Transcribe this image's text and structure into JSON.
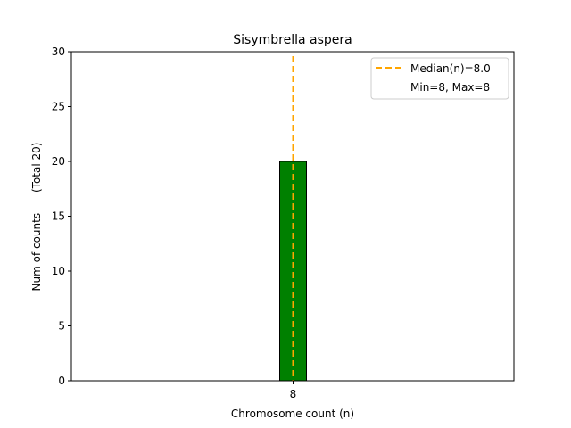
{
  "chart_data": {
    "type": "bar",
    "title": "Sisymbrella aspera",
    "xlabel": "Chromosome count (n)",
    "ylabel": "Num of counts      (Total 20)",
    "categories": [
      "8"
    ],
    "values": [
      20
    ],
    "ylim": [
      0,
      30
    ],
    "yticks": [
      0,
      5,
      10,
      15,
      20,
      25,
      30
    ],
    "median": 8.0,
    "bar_color": "#008000",
    "median_color": "#FFA500",
    "legend": {
      "placement": "top-right",
      "entries": [
        "Median(n)=8.0",
        "Min=8, Max=8"
      ]
    },
    "grid": false
  }
}
